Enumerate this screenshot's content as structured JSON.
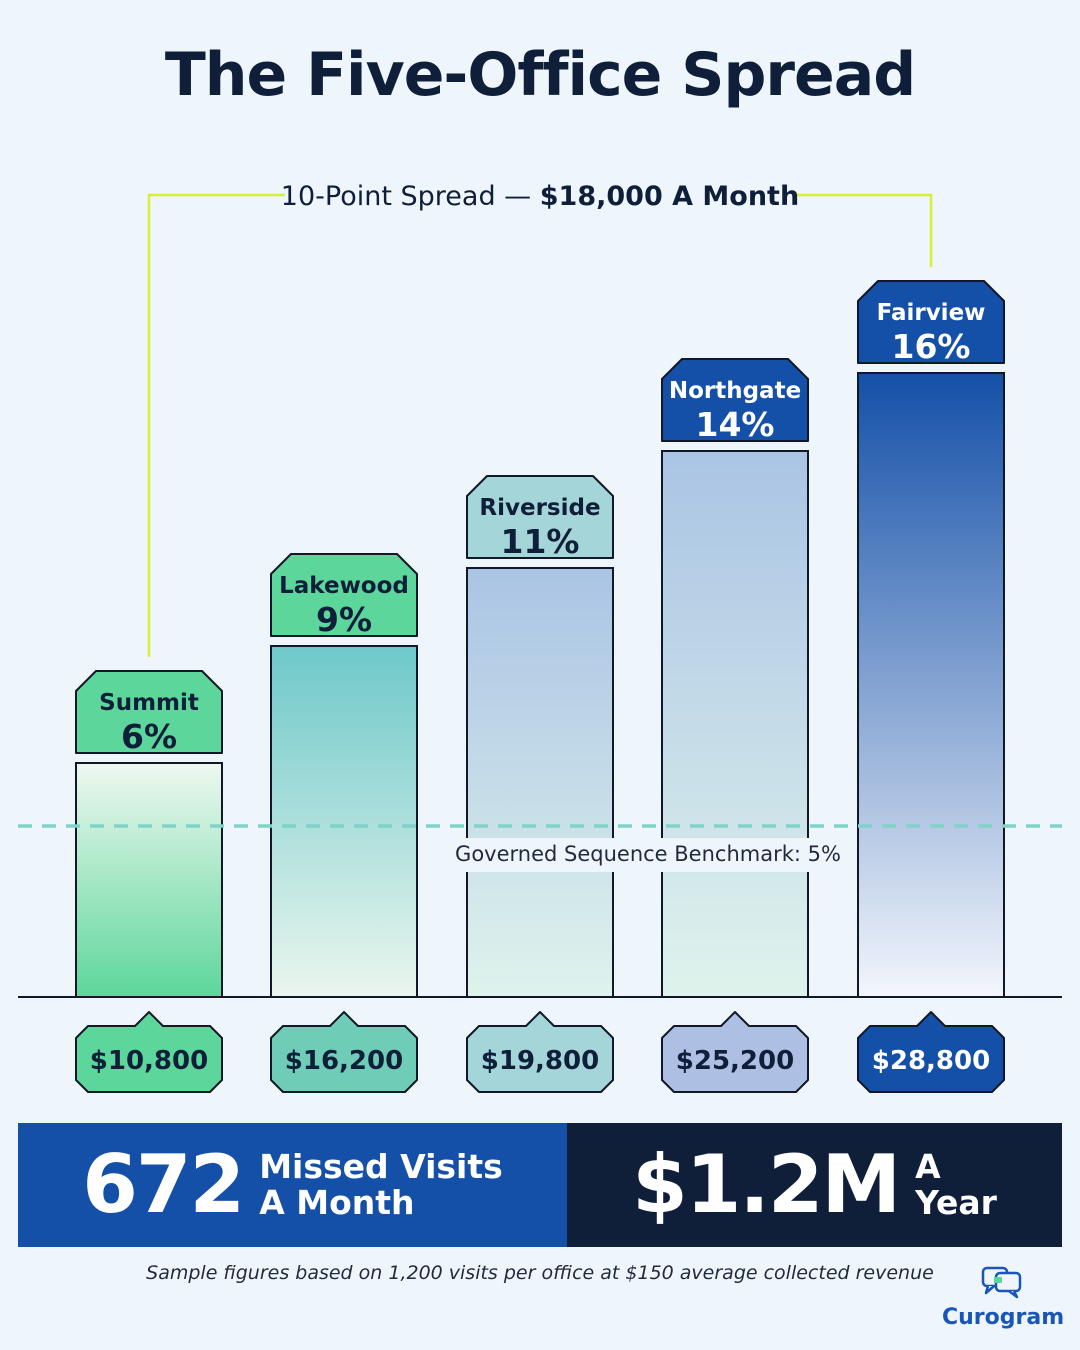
{
  "title": "The Five-Office Spread",
  "spread_label": {
    "prefix": "10-Point Spread — ",
    "value": "$18,000 A Month"
  },
  "benchmark_label": "Governed Sequence Benchmark: 5%",
  "chart_data": {
    "type": "bar",
    "categories": [
      "Summit",
      "Lakewood",
      "Riverside",
      "Northgate",
      "Fairview"
    ],
    "values": [
      6,
      9,
      11,
      14,
      16
    ],
    "value_labels": [
      "6%",
      "9%",
      "11%",
      "14%",
      "16%"
    ],
    "revenue_labels": [
      "$10,800",
      "$16,200",
      "$19,800",
      "$25,200",
      "$28,800"
    ],
    "revenue_values": [
      10800,
      16200,
      19800,
      25200,
      28800
    ],
    "benchmark": 5,
    "colors": {
      "label_fills": [
        "#5dd69b",
        "#5dd69b",
        "#a4d6d9",
        "#1450a8",
        "#1450a8"
      ],
      "label_text": [
        "#0f1f3a",
        "#0f1f3a",
        "#0f1f3a",
        "#ffffff",
        "#ffffff"
      ],
      "money_fills": [
        "#5dd69b",
        "#6fcdb7",
        "#a4d6d9",
        "#adc0e4",
        "#1450a8"
      ],
      "money_text": [
        "#0f1f3a",
        "#0f1f3a",
        "#0f1f3a",
        "#0f1f3a",
        "#ffffff"
      ],
      "bar_top": [
        "#eef8f0",
        "#6ec8c9",
        "#aac4e4",
        "#aac4e4",
        "#1450a8"
      ],
      "bar_bottom": [
        "#5dd69b",
        "#eaf6ee",
        "#dff3ec",
        "#dff3ec",
        "#f3f6fc"
      ],
      "bracket": "#d8ee3a",
      "benchmark_line": "#7fd3c8"
    }
  },
  "summary": {
    "visits_value": "672",
    "visits_line1": "Missed Visits",
    "visits_line2": "A Month",
    "revenue_value": "$1.2M",
    "revenue_line1": "A",
    "revenue_line2": "Year"
  },
  "footnote": "Sample figures based on 1,200 visits per office at $150 average collected revenue",
  "logo": {
    "name": "Curogram",
    "icon": "chat-bubbles-icon"
  }
}
